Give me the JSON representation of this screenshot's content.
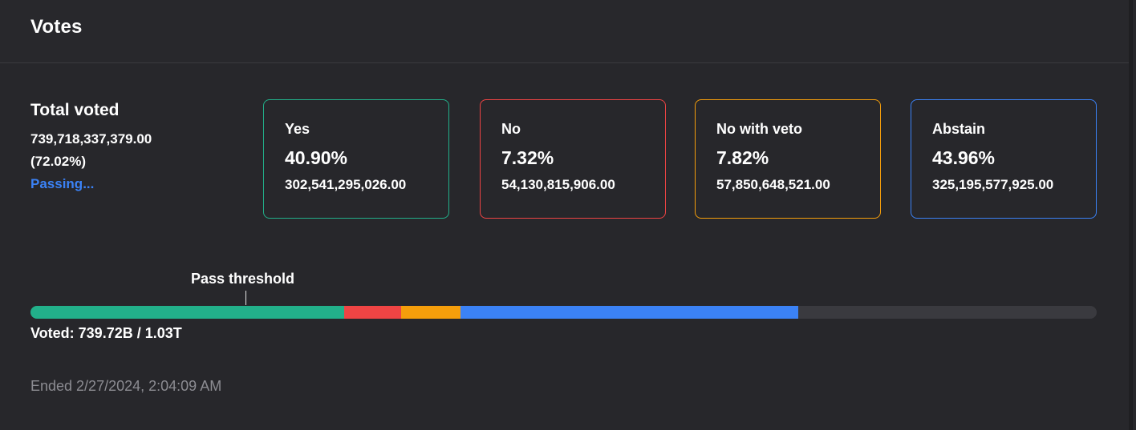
{
  "header": {
    "title": "Votes"
  },
  "summary": {
    "title": "Total voted",
    "amount": "739,718,337,379.00",
    "percent": "(72.02%)",
    "status": "Passing...",
    "status_color": "#3b82f6"
  },
  "options": [
    {
      "label": "Yes",
      "percent": "40.90%",
      "amount": "302,541,295,026.00",
      "color": "#22b08a",
      "share": 40.9
    },
    {
      "label": "No",
      "percent": "7.32%",
      "amount": "54,130,815,906.00",
      "color": "#ef4444",
      "share": 7.32
    },
    {
      "label": "No with veto",
      "percent": "7.82%",
      "amount": "57,850,648,521.00",
      "color": "#f59e0b",
      "share": 7.82
    },
    {
      "label": "Abstain",
      "percent": "43.96%",
      "amount": "325,195,577,925.00",
      "color": "#3b82f6",
      "share": 43.96
    }
  ],
  "progress": {
    "threshold_label": "Pass threshold",
    "turnout_fraction": 0.7202,
    "voted_text": "Voted: 739.72B / 1.03T"
  },
  "footer": {
    "ended": "Ended 2/27/2024, 2:04:09 AM"
  }
}
